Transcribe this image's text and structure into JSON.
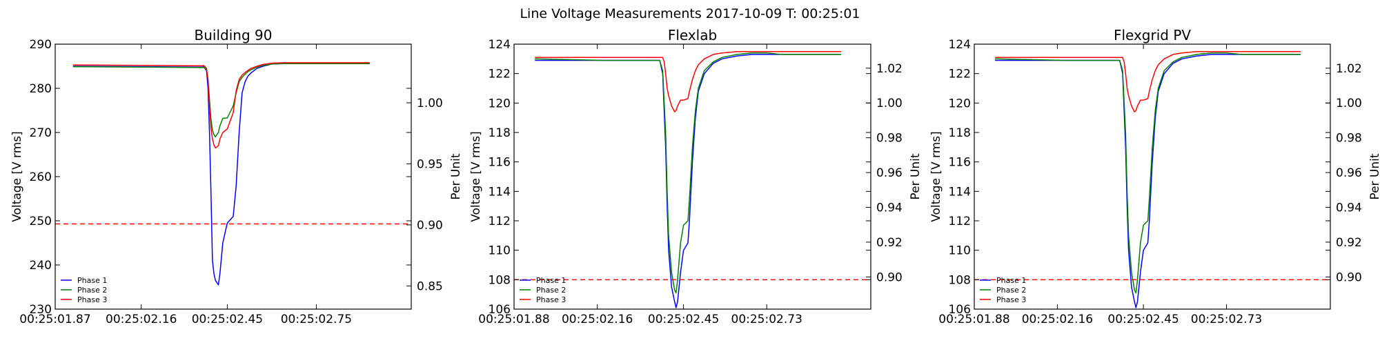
{
  "figure": {
    "suptitle": "Line Voltage Measurements 2017-10-09 T: 00:25:01"
  },
  "chart_data": [
    {
      "type": "line",
      "title": "Building 90",
      "ylabel": "Voltage [V rms]",
      "y2label": "Per Unit",
      "ylim": [
        230,
        290
      ],
      "yticks": [
        230,
        240,
        250,
        260,
        270,
        280,
        290
      ],
      "y2lim": [
        0.831,
        1.048
      ],
      "y2ticks": [
        0.85,
        0.9,
        0.95,
        1.0
      ],
      "y2tick_labels": [
        "0.85",
        "0.90",
        "0.95",
        "1.00"
      ],
      "xlim": [
        0,
        1.2
      ],
      "xticks": [
        0,
        0.29,
        0.58,
        0.88
      ],
      "xtick_labels": [
        "00:25:01.87",
        "00:25:02.16",
        "00:25:02.45",
        "00:25:02.75"
      ],
      "threshold": {
        "value": 249.3,
        "color": "#ff0000",
        "style": "dashed"
      },
      "legend_position": "lower-left",
      "grid": false,
      "series": [
        {
          "name": "Phase 1",
          "color": "#0000ff",
          "x": [
            0.06,
            0.3,
            0.5,
            0.5,
            0.51,
            0.515,
            0.52,
            0.525,
            0.53,
            0.535,
            0.54,
            0.55,
            0.555,
            0.565,
            0.58,
            0.6,
            0.61,
            0.62,
            0.63,
            0.64,
            0.65,
            0.66,
            0.68,
            0.7,
            0.73,
            0.77,
            0.8,
            0.85,
            0.9,
            1.0,
            1.06
          ],
          "y": [
            285.0,
            284.9,
            284.8,
            284.9,
            284.0,
            280.0,
            270.0,
            256.0,
            241.0,
            238.0,
            236.5,
            235.5,
            238.0,
            245.0,
            249.5,
            251.0,
            258.0,
            270.0,
            279.0,
            281.5,
            282.8,
            283.5,
            284.5,
            285.0,
            285.5,
            285.6,
            285.6,
            285.6,
            285.6,
            285.6,
            285.6
          ]
        },
        {
          "name": "Phase 2",
          "color": "#008000",
          "x": [
            0.06,
            0.3,
            0.5,
            0.5,
            0.51,
            0.515,
            0.52,
            0.525,
            0.53,
            0.535,
            0.54,
            0.55,
            0.555,
            0.565,
            0.58,
            0.6,
            0.61,
            0.62,
            0.63,
            0.64,
            0.65,
            0.66,
            0.68,
            0.7,
            0.73,
            0.77,
            0.8,
            0.85,
            0.9,
            1.0,
            1.06
          ],
          "y": [
            284.9,
            284.8,
            284.7,
            284.8,
            284.2,
            282.0,
            277.5,
            273.0,
            270.5,
            269.5,
            269.0,
            270.0,
            271.5,
            273.2,
            273.3,
            276.0,
            279.0,
            281.5,
            282.5,
            283.2,
            283.8,
            284.2,
            284.8,
            285.2,
            285.5,
            285.6,
            285.6,
            285.6,
            285.6,
            285.6,
            285.6
          ]
        },
        {
          "name": "Phase 3",
          "color": "#ff0000",
          "x": [
            0.06,
            0.3,
            0.5,
            0.5,
            0.51,
            0.515,
            0.52,
            0.525,
            0.53,
            0.535,
            0.54,
            0.55,
            0.555,
            0.565,
            0.58,
            0.6,
            0.61,
            0.62,
            0.63,
            0.64,
            0.65,
            0.66,
            0.68,
            0.7,
            0.73,
            0.77,
            0.8,
            0.85,
            0.9,
            1.0,
            1.06
          ],
          "y": [
            285.3,
            285.2,
            285.1,
            285.2,
            284.5,
            282.0,
            276.0,
            271.0,
            268.5,
            267.2,
            266.5,
            267.0,
            268.5,
            270.0,
            270.8,
            274.5,
            279.5,
            282.0,
            283.0,
            283.6,
            284.1,
            284.5,
            285.0,
            285.4,
            285.7,
            285.8,
            285.8,
            285.8,
            285.8,
            285.8,
            285.8
          ]
        }
      ]
    },
    {
      "type": "line",
      "title": "Flexlab",
      "ylabel": "Voltage [V rms]",
      "y2label": "Per Unit",
      "ylim": [
        106,
        124
      ],
      "yticks": [
        106,
        108,
        110,
        112,
        114,
        116,
        118,
        120,
        122,
        124
      ],
      "y2lim": [
        0.8815,
        1.0338
      ],
      "y2ticks": [
        0.9,
        0.92,
        0.94,
        0.96,
        0.98,
        1.0,
        1.02
      ],
      "y2tick_labels": [
        "0.90",
        "0.92",
        "0.94",
        "0.96",
        "0.98",
        "1.00",
        "1.02"
      ],
      "xlim": [
        0,
        1.2
      ],
      "xticks": [
        0,
        0.28,
        0.57,
        0.85
      ],
      "xtick_labels": [
        "00:25:01.88",
        "00:25:02.16",
        "00:25:02.45",
        "00:25:02.73"
      ],
      "threshold": {
        "value": 108.0,
        "color": "#ff0000",
        "style": "dashed"
      },
      "legend_position": "lower-left",
      "grid": false,
      "series": [
        {
          "name": "Phase 1",
          "color": "#0000ff",
          "x": [
            0.07,
            0.3,
            0.49,
            0.49,
            0.5,
            0.51,
            0.515,
            0.52,
            0.53,
            0.54,
            0.545,
            0.55,
            0.56,
            0.57,
            0.585,
            0.59,
            0.6,
            0.61,
            0.62,
            0.64,
            0.67,
            0.7,
            0.75,
            0.8,
            0.85,
            0.9,
            1.0,
            1.1
          ],
          "y": [
            122.9,
            122.9,
            122.9,
            122.9,
            122.0,
            117.0,
            113.0,
            110.0,
            107.5,
            106.5,
            106.1,
            106.5,
            108.5,
            110.0,
            110.5,
            112.0,
            116.0,
            119.0,
            120.8,
            122.0,
            122.7,
            123.0,
            123.2,
            123.3,
            123.3,
            123.3,
            123.3,
            123.3
          ]
        },
        {
          "name": "Phase 2",
          "color": "#008000",
          "x": [
            0.07,
            0.3,
            0.49,
            0.49,
            0.5,
            0.51,
            0.515,
            0.52,
            0.53,
            0.54,
            0.545,
            0.55,
            0.56,
            0.57,
            0.585,
            0.59,
            0.6,
            0.61,
            0.62,
            0.64,
            0.67,
            0.7,
            0.75,
            0.8,
            0.85,
            0.9,
            1.0,
            1.1
          ],
          "y": [
            123.0,
            122.9,
            122.9,
            122.9,
            122.2,
            118.0,
            114.0,
            111.0,
            108.5,
            107.3,
            107.1,
            108.0,
            110.5,
            111.7,
            112.0,
            113.5,
            117.0,
            119.5,
            121.0,
            122.2,
            122.8,
            123.1,
            123.3,
            123.4,
            123.4,
            123.3,
            123.3,
            123.3
          ]
        },
        {
          "name": "Phase 3",
          "color": "#ff0000",
          "x": [
            0.07,
            0.3,
            0.49,
            0.5,
            0.505,
            0.51,
            0.515,
            0.52,
            0.53,
            0.54,
            0.545,
            0.55,
            0.56,
            0.57,
            0.585,
            0.59,
            0.6,
            0.61,
            0.62,
            0.64,
            0.67,
            0.7,
            0.75,
            0.8,
            0.85,
            0.9,
            1.0,
            1.1
          ],
          "y": [
            123.1,
            123.1,
            123.1,
            123.1,
            122.8,
            122.0,
            121.0,
            120.5,
            119.8,
            119.4,
            119.5,
            119.8,
            120.2,
            120.2,
            120.3,
            120.8,
            121.6,
            122.2,
            122.6,
            123.0,
            123.3,
            123.4,
            123.5,
            123.5,
            123.5,
            123.5,
            123.5,
            123.5
          ]
        }
      ]
    },
    {
      "type": "line",
      "title": "Flexgrid PV",
      "ylabel": "Voltage [V rms]",
      "y2label": "Per Unit",
      "ylim": [
        106,
        124
      ],
      "yticks": [
        106,
        108,
        110,
        112,
        114,
        116,
        118,
        120,
        122,
        124
      ],
      "y2lim": [
        0.8815,
        1.0338
      ],
      "y2ticks": [
        0.9,
        0.92,
        0.94,
        0.96,
        0.98,
        1.0,
        1.02
      ],
      "y2tick_labels": [
        "0.90",
        "0.92",
        "0.94",
        "0.96",
        "0.98",
        "1.00",
        "1.02"
      ],
      "xlim": [
        0,
        1.2
      ],
      "xticks": [
        0,
        0.28,
        0.57,
        0.85
      ],
      "xtick_labels": [
        "00:25:01.88",
        "00:25:02.16",
        "00:25:02.45",
        "00:25:02.73"
      ],
      "threshold": {
        "value": 108.0,
        "color": "#ff0000",
        "style": "dashed"
      },
      "legend_position": "lower-left",
      "grid": false,
      "series": [
        {
          "name": "Phase 1",
          "color": "#0000ff",
          "x": [
            0.07,
            0.3,
            0.49,
            0.49,
            0.5,
            0.51,
            0.515,
            0.52,
            0.53,
            0.54,
            0.545,
            0.55,
            0.56,
            0.57,
            0.585,
            0.59,
            0.6,
            0.61,
            0.62,
            0.64,
            0.67,
            0.7,
            0.75,
            0.8,
            0.85,
            0.9,
            1.0,
            1.1
          ],
          "y": [
            122.9,
            122.9,
            122.9,
            122.9,
            122.0,
            117.0,
            113.0,
            110.0,
            107.5,
            106.5,
            106.1,
            106.5,
            108.5,
            110.0,
            110.5,
            112.0,
            116.0,
            119.0,
            120.8,
            122.0,
            122.7,
            123.0,
            123.2,
            123.3,
            123.3,
            123.3,
            123.3,
            123.3
          ]
        },
        {
          "name": "Phase 2",
          "color": "#008000",
          "x": [
            0.07,
            0.3,
            0.49,
            0.49,
            0.5,
            0.51,
            0.515,
            0.52,
            0.53,
            0.54,
            0.545,
            0.55,
            0.56,
            0.57,
            0.585,
            0.59,
            0.6,
            0.61,
            0.62,
            0.64,
            0.67,
            0.7,
            0.75,
            0.8,
            0.85,
            0.9,
            1.0,
            1.1
          ],
          "y": [
            123.0,
            122.9,
            122.9,
            122.9,
            122.2,
            118.0,
            114.0,
            111.0,
            108.5,
            107.3,
            107.1,
            108.0,
            110.5,
            111.7,
            112.0,
            113.5,
            117.0,
            119.5,
            121.0,
            122.2,
            122.8,
            123.1,
            123.3,
            123.4,
            123.4,
            123.3,
            123.3,
            123.3
          ]
        },
        {
          "name": "Phase 3",
          "color": "#ff0000",
          "x": [
            0.07,
            0.3,
            0.49,
            0.5,
            0.505,
            0.51,
            0.515,
            0.52,
            0.53,
            0.54,
            0.545,
            0.55,
            0.56,
            0.57,
            0.585,
            0.59,
            0.6,
            0.61,
            0.62,
            0.64,
            0.67,
            0.7,
            0.75,
            0.8,
            0.85,
            0.9,
            1.0,
            1.1
          ],
          "y": [
            123.1,
            123.1,
            123.1,
            123.1,
            122.8,
            122.0,
            121.0,
            120.5,
            119.8,
            119.4,
            119.5,
            119.8,
            120.2,
            120.2,
            120.3,
            120.8,
            121.6,
            122.2,
            122.6,
            123.0,
            123.3,
            123.4,
            123.5,
            123.5,
            123.5,
            123.5,
            123.5,
            123.5
          ]
        }
      ]
    }
  ]
}
